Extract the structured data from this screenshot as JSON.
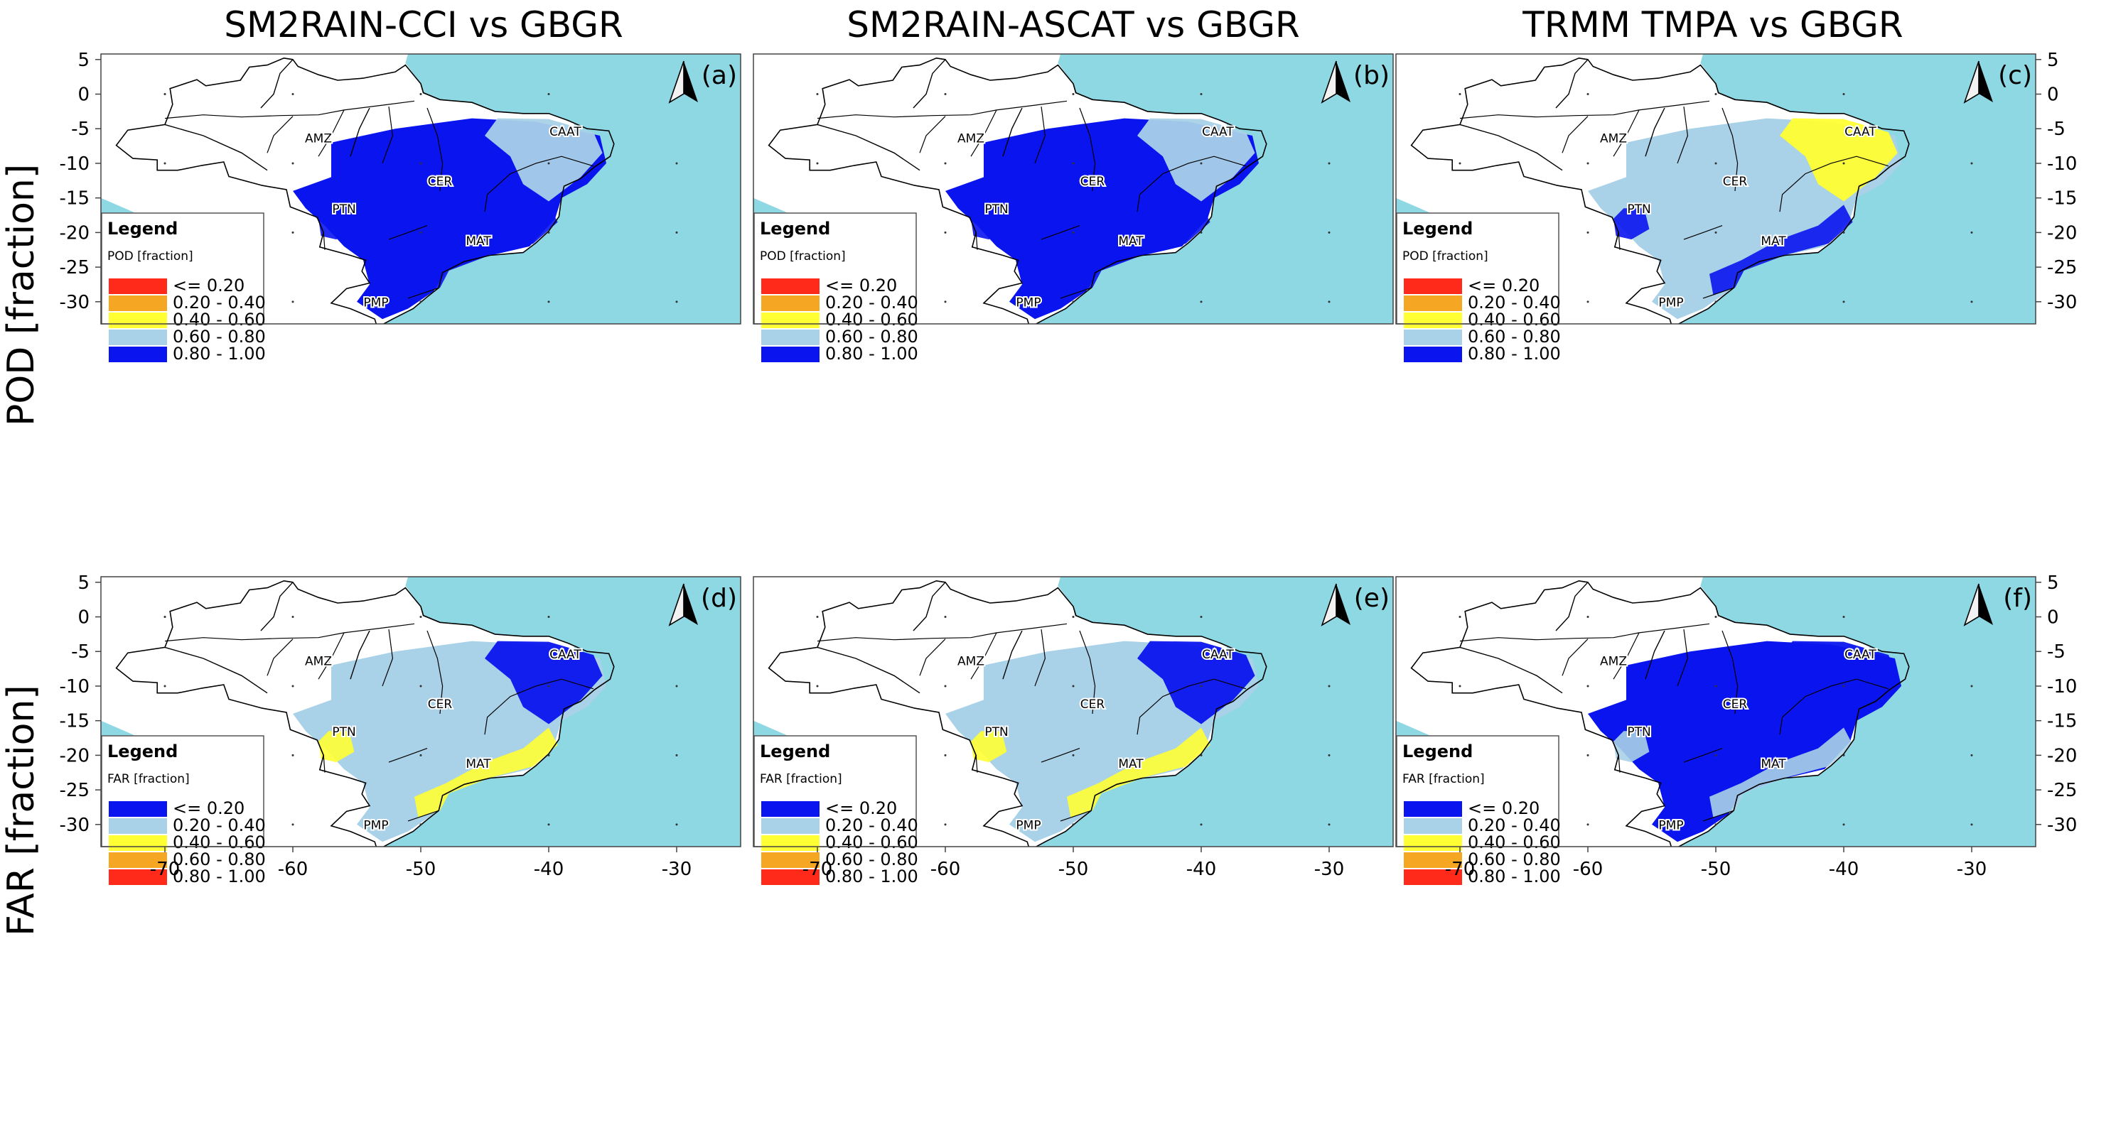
{
  "columns": [
    {
      "title": "SM2RAIN-CCI vs GBGR"
    },
    {
      "title": "SM2RAIN-ASCAT vs GBGR"
    },
    {
      "title": "TRMM TMPA vs GBGR"
    }
  ],
  "rows": [
    {
      "title": "POD [fraction]",
      "legend_title": "Legend",
      "legend_subtitle": "POD [fraction]"
    },
    {
      "title": "FAR [fraction]",
      "legend_title": "Legend",
      "legend_subtitle": "FAR [fraction]"
    }
  ],
  "panels": [
    {
      "label": "(a)",
      "metric": "POD",
      "product": "SM2RAIN-CCI",
      "dominant_class": 4
    },
    {
      "label": "(b)",
      "metric": "POD",
      "product": "SM2RAIN-ASCAT",
      "dominant_class": 4
    },
    {
      "label": "(c)",
      "metric": "POD",
      "product": "TRMM TMPA",
      "dominant_class": 3
    },
    {
      "label": "(d)",
      "metric": "FAR",
      "product": "SM2RAIN-CCI",
      "dominant_class": 1
    },
    {
      "label": "(e)",
      "metric": "FAR",
      "product": "SM2RAIN-ASCAT",
      "dominant_class": 1
    },
    {
      "label": "(f)",
      "metric": "FAR",
      "product": "TRMM TMPA",
      "dominant_class": 0
    }
  ],
  "legend_classes": {
    "POD": [
      {
        "label": "<= 0.20",
        "color": "#ff2a1a"
      },
      {
        "label": "0.20 - 0.40",
        "color": "#f5a623"
      },
      {
        "label": "0.40 - 0.60",
        "color": "#ffff33"
      },
      {
        "label": "0.60 - 0.80",
        "color": "#a9d1e8"
      },
      {
        "label": "0.80 - 1.00",
        "color": "#0a14ee"
      }
    ],
    "FAR": [
      {
        "label": "<= 0.20",
        "color": "#0a14ee"
      },
      {
        "label": "0.20 - 0.40",
        "color": "#a9d1e8"
      },
      {
        "label": "0.40 - 0.60",
        "color": "#ffff33"
      },
      {
        "label": "0.60 - 0.80",
        "color": "#f5a623"
      },
      {
        "label": "0.80 - 1.00",
        "color": "#ff2a1a"
      }
    ]
  },
  "biome_labels": [
    "AMZ",
    "CAAT",
    "CER",
    "PTN",
    "MAT",
    "PMP"
  ],
  "lon_ticks": [
    "-70",
    "-60",
    "-50",
    "-40",
    "-30"
  ],
  "lat_ticks": [
    "5",
    "0",
    "-5",
    "-10",
    "-15",
    "-20",
    "-25",
    "-30"
  ],
  "lon_range": [
    -75,
    -25
  ],
  "lat_range": [
    5.8,
    -33.2
  ],
  "colors": {
    "ocean": "#8ed8e3",
    "land": "#ffffff",
    "border": "#000000"
  }
}
